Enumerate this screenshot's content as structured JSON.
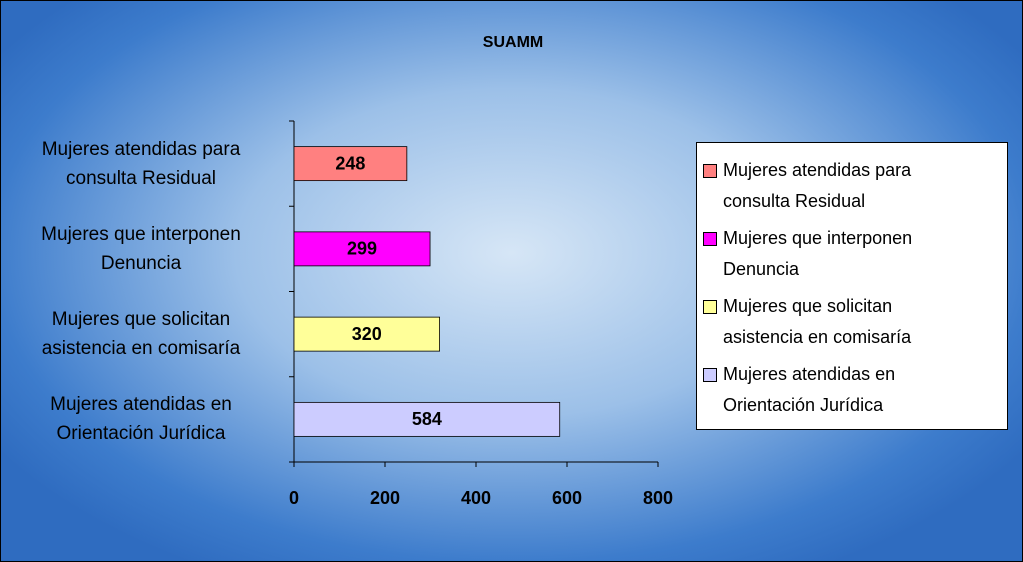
{
  "chart_data": {
    "type": "bar",
    "orientation": "horizontal",
    "title": "SUAMM",
    "categories": [
      "Mujeres atendidas para\nconsulta Residual",
      "Mujeres que interponen\nDenuncia",
      "Mujeres que solicitan\nasistencia en comisaría",
      "Mujeres atendidas en\nOrientación Jurídica"
    ],
    "values": [
      248,
      299,
      320,
      584
    ],
    "colors": [
      "#ff8080",
      "#ff00ff",
      "#ffff99",
      "#ccccff"
    ],
    "xlim": [
      0,
      800
    ],
    "xticks": [
      0,
      200,
      400,
      600,
      800
    ],
    "legend": "right"
  }
}
